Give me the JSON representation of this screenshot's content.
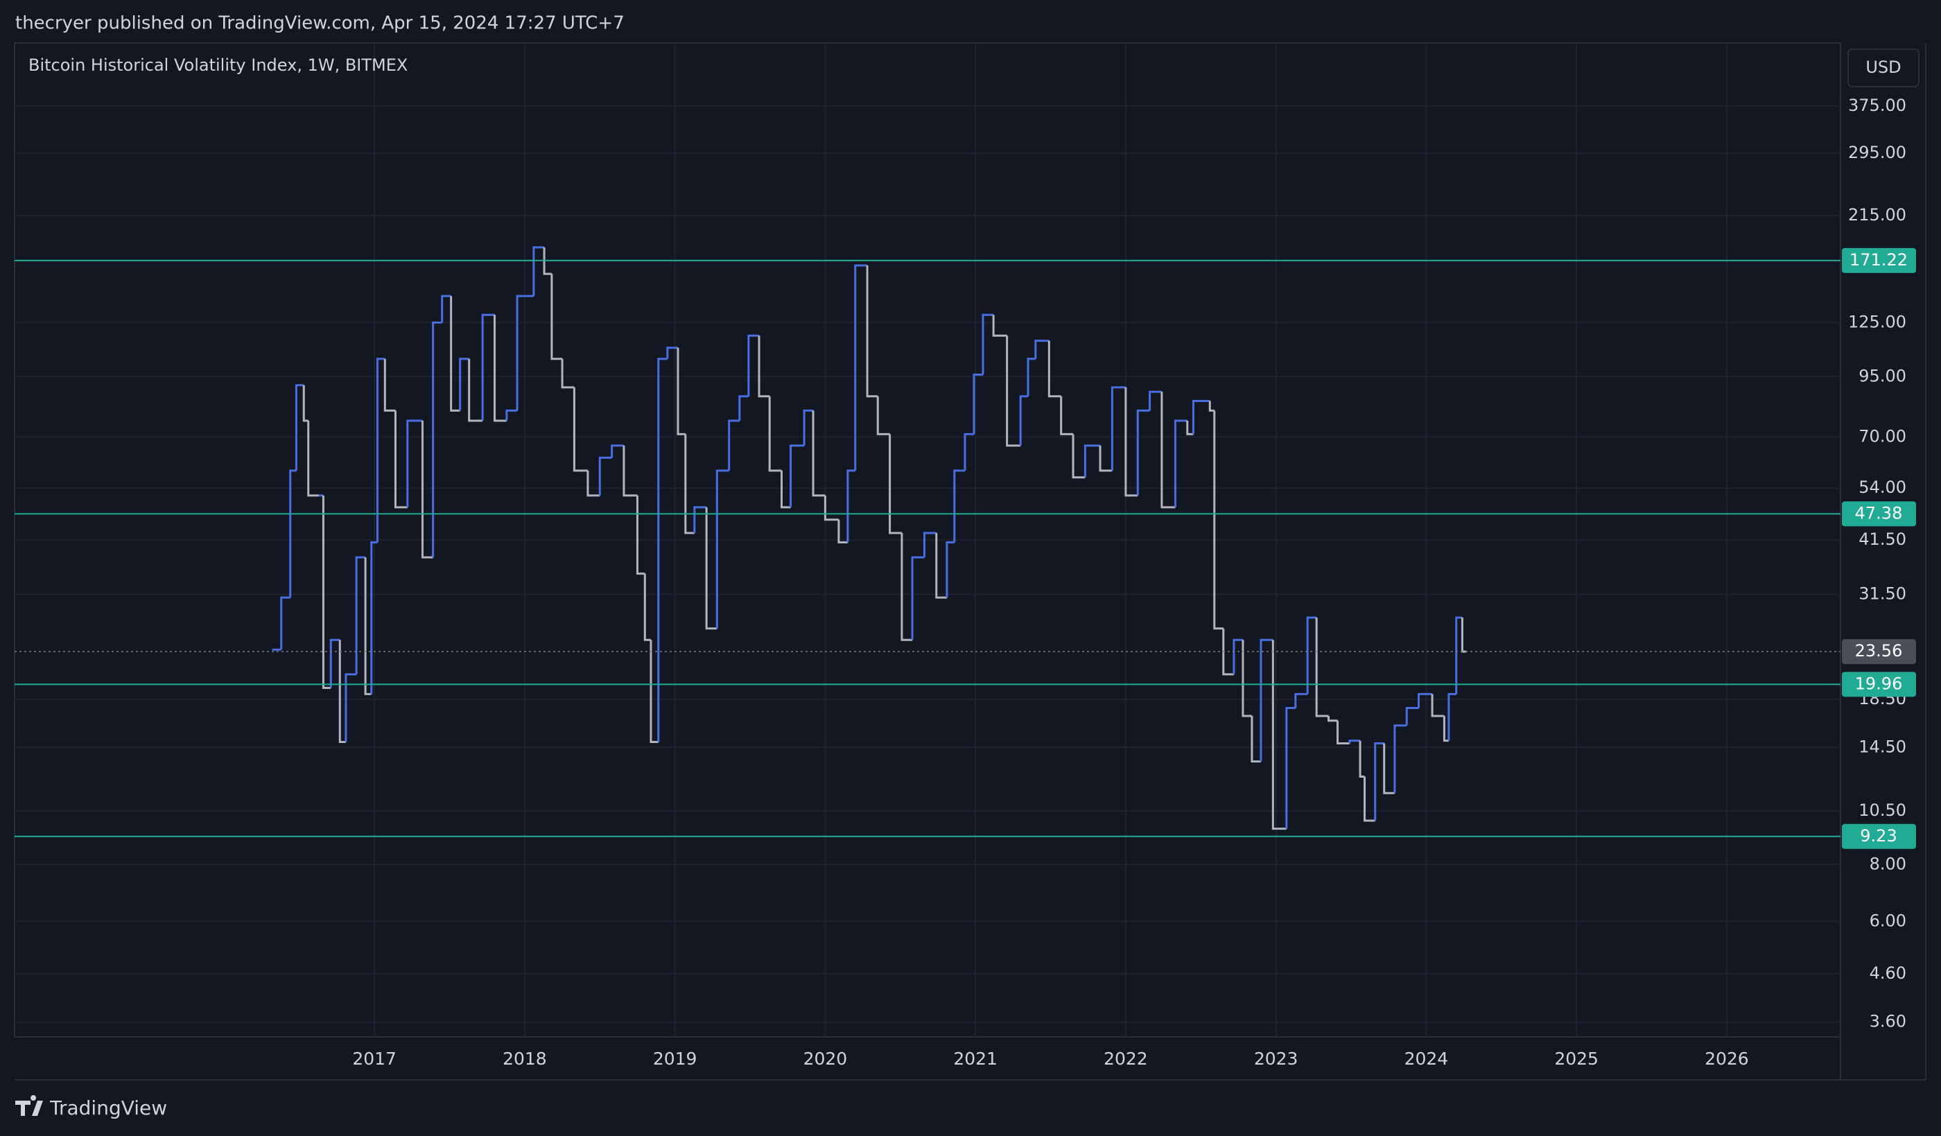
{
  "header": "thecryer published on TradingView.com, Apr 15, 2024 17:27 UTC+7",
  "footer": "TradingView",
  "chart_data": {
    "type": "step",
    "title": "Bitcoin Historical Volatility Index, 1W, BITMEX",
    "currency": "USD",
    "log_y": true,
    "grid": true,
    "up_color": "#4a6ee0",
    "down_color": "#b2b5be",
    "level_color": "#22ab94",
    "levels": [
      171.22,
      47.38,
      19.96,
      9.23
    ],
    "xlim": [
      2014.605,
      2026.757
    ],
    "xticks": [
      2017,
      2018,
      2019,
      2020,
      2021,
      2022,
      2023,
      2024,
      2025,
      2026
    ],
    "ylim": [
      3.34,
      516
    ],
    "yticks": [
      {
        "value": 375,
        "label": "375.00"
      },
      {
        "value": 295,
        "label": "295.00"
      },
      {
        "value": 215,
        "label": "215.00"
      },
      {
        "value": 125,
        "label": "125.00"
      },
      {
        "value": 95,
        "label": "95.00"
      },
      {
        "value": 70,
        "label": "70.00"
      },
      {
        "value": 54,
        "label": "54.00"
      },
      {
        "value": 41.5,
        "label": "41.50"
      },
      {
        "value": 31.5,
        "label": "31.50"
      },
      {
        "value": 18.5,
        "label": "18.50"
      },
      {
        "value": 14.5,
        "label": "14.50"
      },
      {
        "value": 10.5,
        "label": "10.50"
      },
      {
        "value": 8,
        "label": "8.00"
      },
      {
        "value": 6,
        "label": "6.00"
      },
      {
        "value": 4.6,
        "label": "4.60"
      },
      {
        "value": 3.6,
        "label": "3.60"
      }
    ],
    "x": [
      2016.32,
      2016.38,
      2016.44,
      2016.48,
      2016.53,
      2016.56,
      2016.63,
      2016.66,
      2016.71,
      2016.77,
      2016.81,
      2016.88,
      2016.94,
      2016.98,
      2017.02,
      2017.07,
      2017.14,
      2017.22,
      2017.32,
      2017.39,
      2017.45,
      2017.51,
      2017.57,
      2017.63,
      2017.72,
      2017.8,
      2017.88,
      2017.95,
      2018.0,
      2018.06,
      2018.13,
      2018.18,
      2018.25,
      2018.33,
      2018.42,
      2018.5,
      2018.58,
      2018.66,
      2018.75,
      2018.8,
      2018.84,
      2018.89,
      2018.95,
      2019.02,
      2019.07,
      2019.13,
      2019.21,
      2019.28,
      2019.36,
      2019.43,
      2019.49,
      2019.56,
      2019.63,
      2019.71,
      2019.77,
      2019.86,
      2019.92,
      2020.0,
      2020.09,
      2020.15,
      2020.2,
      2020.24,
      2020.28,
      2020.35,
      2020.43,
      2020.51,
      2020.58,
      2020.66,
      2020.74,
      2020.81,
      2020.86,
      2020.93,
      2020.99,
      2021.05,
      2021.12,
      2021.21,
      2021.3,
      2021.35,
      2021.4,
      2021.49,
      2021.57,
      2021.65,
      2021.73,
      2021.83,
      2021.91,
      2022.0,
      2022.08,
      2022.16,
      2022.24,
      2022.33,
      2022.41,
      2022.45,
      2022.56,
      2022.59,
      2022.65,
      2022.72,
      2022.78,
      2022.84,
      2022.9,
      2022.98,
      2023.07,
      2023.13,
      2023.21,
      2023.27,
      2023.35,
      2023.41,
      2023.49,
      2023.56,
      2023.59,
      2023.66,
      2023.72,
      2023.79,
      2023.87,
      2023.95,
      2024.04,
      2024.12,
      2024.15,
      2024.2,
      2024.24
    ],
    "values": [
      23.8,
      31,
      59,
      91,
      76,
      52,
      52,
      19.6,
      25,
      14.9,
      21,
      38,
      19,
      41,
      104,
      80,
      49,
      76,
      38,
      125,
      143,
      80,
      104,
      76,
      130,
      76,
      80,
      143,
      143,
      183,
      160,
      104,
      90,
      59,
      52,
      63,
      67,
      52,
      35,
      25,
      14.9,
      104,
      110,
      71,
      43,
      49,
      26.5,
      59,
      76,
      86,
      117,
      86,
      59,
      49,
      67,
      80,
      52,
      46,
      41,
      59,
      167,
      167,
      86,
      71,
      43,
      25,
      38,
      43,
      31,
      41,
      59,
      71,
      96,
      130,
      117,
      67,
      86,
      104,
      114,
      86,
      71,
      57,
      67,
      59,
      90,
      52,
      80,
      88,
      49,
      76,
      71,
      84,
      80,
      26.5,
      21,
      25,
      17,
      13.5,
      25,
      9.6,
      17.7,
      19,
      28,
      17,
      16.6,
      14.8,
      15,
      12.5,
      10,
      14.8,
      11.5,
      16.2,
      17.7,
      19,
      17,
      15,
      19,
      28,
      23.56
    ]
  }
}
